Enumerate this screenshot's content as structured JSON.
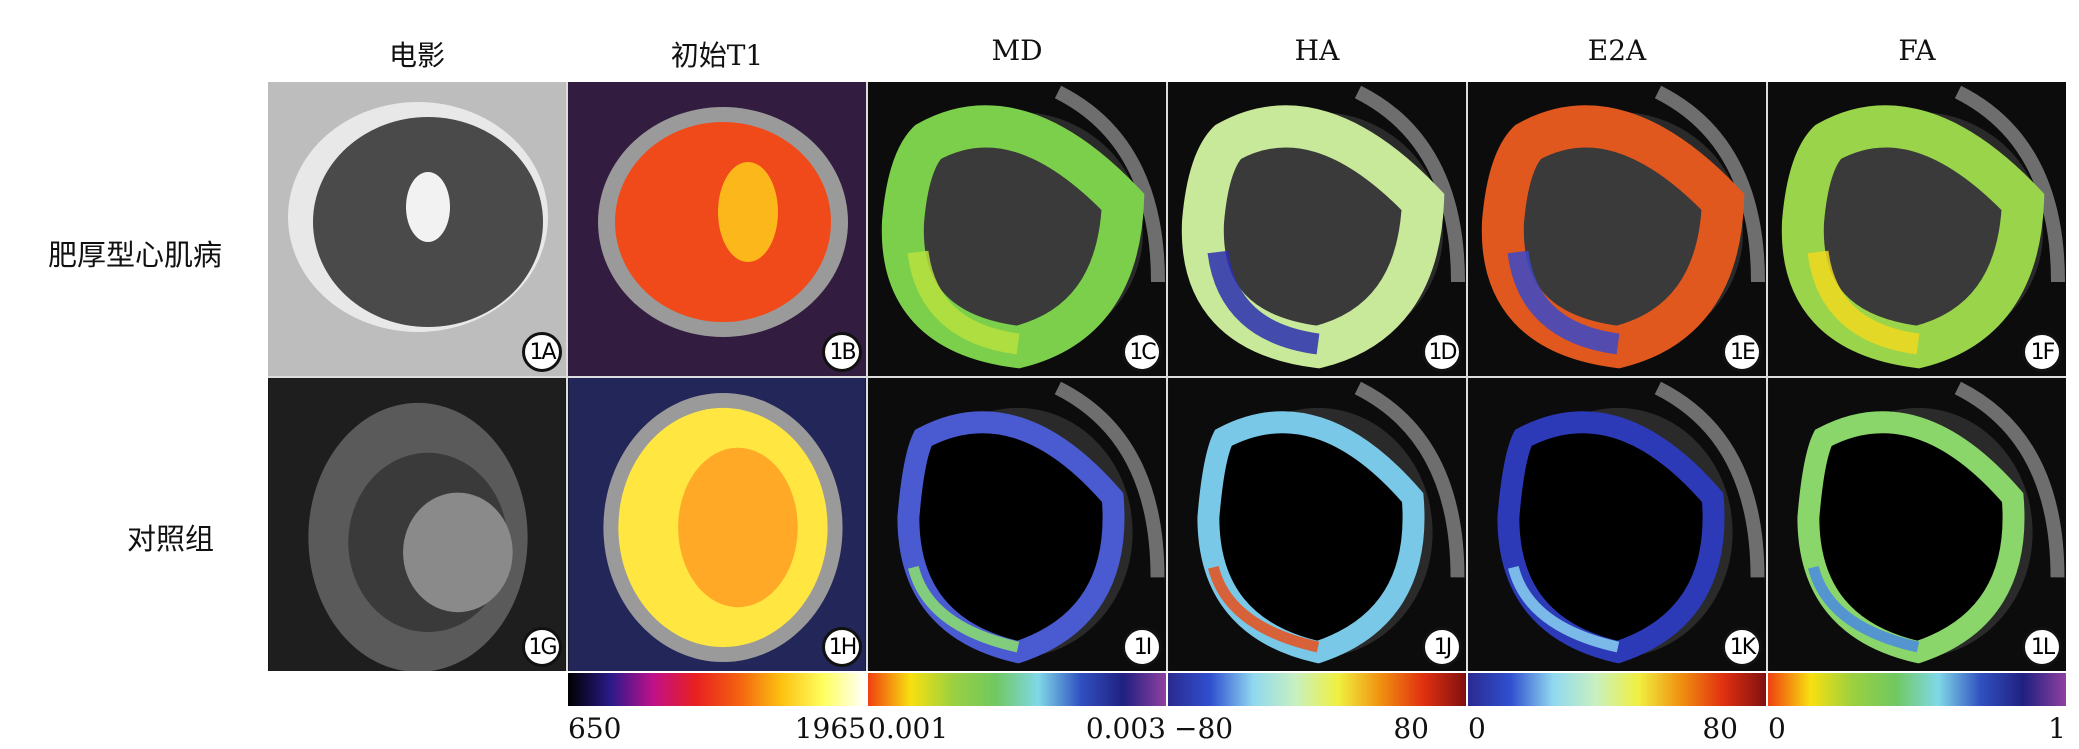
{
  "columns": [
    "电影",
    "初始T1",
    "MD",
    "HA",
    "E2A",
    "FA"
  ],
  "rows": [
    "肥厚型心肌病",
    "对照组"
  ],
  "panels": [
    {
      "label": "1A",
      "kind": "cine",
      "fill": "#4a4a4a",
      "center": "#f2f2f2"
    },
    {
      "label": "1B",
      "kind": "t1",
      "fill": "#f04a1a",
      "center": "#ffd21a"
    },
    {
      "label": "1C",
      "kind": "dti",
      "ring": "#7ccf4a",
      "accent": "#b8e040",
      "thick": true
    },
    {
      "label": "1D",
      "kind": "dti",
      "ring": "#c8e89a",
      "accent": "#2b2fb0",
      "thick": true
    },
    {
      "label": "1E",
      "kind": "dti",
      "ring": "#e0581e",
      "accent": "#3a49c8",
      "thick": true
    },
    {
      "label": "1F",
      "kind": "dti",
      "ring": "#9ad44a",
      "accent": "#f0d820",
      "thick": true
    },
    {
      "label": "1G",
      "kind": "cine",
      "fill": "#3a3a3a",
      "center": "#8a8a8a"
    },
    {
      "label": "1H",
      "kind": "t1",
      "fill": "#ffe640",
      "center": "#ff9a20"
    },
    {
      "label": "1I",
      "kind": "dti",
      "ring": "#4a5ad0",
      "accent": "#8ce070",
      "thick": false
    },
    {
      "label": "1J",
      "kind": "dti",
      "ring": "#7ac8e8",
      "accent": "#e8501a",
      "thick": false
    },
    {
      "label": "1K",
      "kind": "dti",
      "ring": "#2c3ab8",
      "accent": "#8ad0f0",
      "thick": false
    },
    {
      "label": "1L",
      "kind": "dti",
      "ring": "#8ad66a",
      "accent": "#4a8ae0",
      "thick": false
    }
  ],
  "colorbars": [
    {
      "name": "t1",
      "min": "650",
      "max": "1965",
      "stops": [
        "#000000",
        "#2a1a8a",
        "#c0108a",
        "#e82020",
        "#f46010",
        "#fcc010",
        "#ffff60",
        "#ffffff"
      ]
    },
    {
      "name": "md",
      "min": "0.001",
      "max": "0.003",
      "stops": [
        "#f04010",
        "#f8e010",
        "#9ad040",
        "#70c860",
        "#80d8e8",
        "#3050c0",
        "#202080",
        "#9040a0"
      ]
    },
    {
      "name": "ha",
      "min": "−80",
      "max": "80",
      "stops": [
        "#2a2a90",
        "#3050d0",
        "#90d8f0",
        "#c8f0c0",
        "#f0f040",
        "#f09010",
        "#e03010",
        "#801010"
      ]
    },
    {
      "name": "e2a",
      "min": "0",
      "max": "80",
      "stops": [
        "#2a2a90",
        "#3050d0",
        "#90d8f0",
        "#c8f0c0",
        "#f0f040",
        "#f09010",
        "#e03010",
        "#801010"
      ]
    },
    {
      "name": "fa",
      "min": "0",
      "max": "1",
      "stops": [
        "#f04010",
        "#f8e010",
        "#9ad040",
        "#70c860",
        "#80d8e8",
        "#3050c0",
        "#202080",
        "#9040a0"
      ]
    }
  ]
}
